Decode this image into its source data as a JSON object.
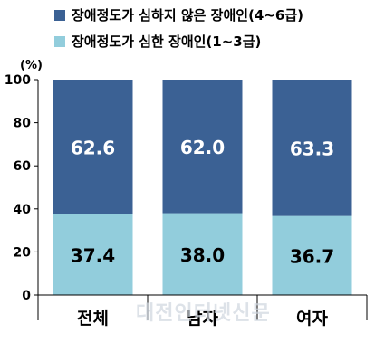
{
  "chart_data": {
    "type": "bar",
    "stacked": true,
    "percent_stacked": true,
    "unit_label": "(%)",
    "categories": [
      "전체",
      "남자",
      "여자"
    ],
    "series": [
      {
        "name": "장애정도가 심한 장애인(1~3급)",
        "values": [
          37.4,
          38.0,
          36.7
        ],
        "labels": [
          "37.4",
          "38.0",
          "36.7"
        ],
        "color": "#92cddc"
      },
      {
        "name": "장애정도가 심하지 않은 장애인(4~6급)",
        "values": [
          62.6,
          62.0,
          63.3
        ],
        "labels": [
          "62.6",
          "62.0",
          "63.3"
        ],
        "color": "#3b6194"
      }
    ],
    "ylim": [
      0,
      100
    ],
    "yticks": [
      0,
      20,
      40,
      60,
      80,
      100
    ],
    "grid": false,
    "legend_position": "top-left"
  },
  "watermark": "대전인터넷신문"
}
